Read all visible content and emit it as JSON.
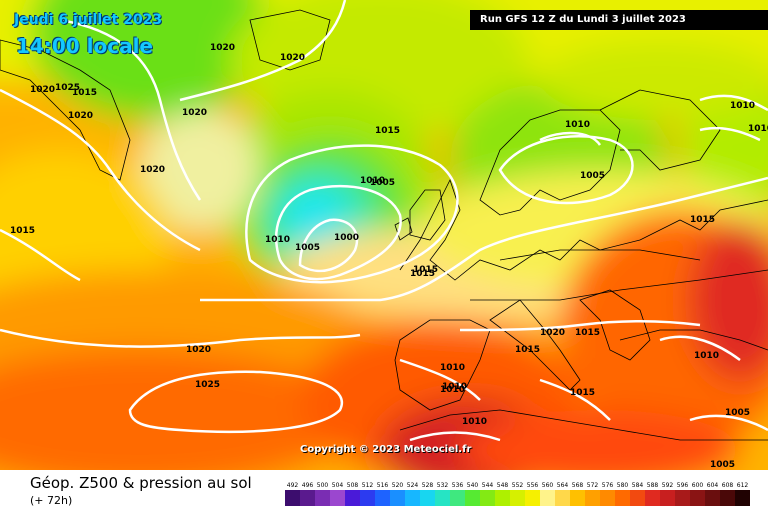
{
  "header": {
    "date": "Jeudi 6 juillet 2023",
    "time": "14:00 locale",
    "run": "Run GFS 12 Z du Lundi 3 juillet 2023"
  },
  "footer": {
    "copyright": "Copyright © 2023 Meteociel.fr",
    "title": "Géop. Z500 & pression au sol",
    "subtitle": "(+ 72h)"
  },
  "isobars": {
    "labels": [
      "1020",
      "1025",
      "1020",
      "1020",
      "1020",
      "1015",
      "1020",
      "1020",
      "1015",
      "1010",
      "1005",
      "1010",
      "1005",
      "1000",
      "1015",
      "1020",
      "1025",
      "1020",
      "1015",
      "1015",
      "1015",
      "1015",
      "1010",
      "1010",
      "1010",
      "1015",
      "1010",
      "1010",
      "1010",
      "1010",
      "1005",
      "1005",
      "1010",
      "1005",
      "1015"
    ]
  },
  "legend": {
    "unit_labels": [
      "492",
      "496",
      "500",
      "504",
      "508",
      "512",
      "516",
      "520",
      "524",
      "528",
      "532",
      "536",
      "540",
      "544",
      "548",
      "552",
      "556",
      "560",
      "564",
      "568",
      "572",
      "576",
      "580",
      "584",
      "588",
      "592",
      "596",
      "600",
      "604",
      "608",
      "612"
    ],
    "colors": [
      "#3c0d6e",
      "#5a1a8e",
      "#7a2db3",
      "#9b47cf",
      "#4a1ad8",
      "#2c3bf0",
      "#1e63ff",
      "#1a8fff",
      "#17b7ff",
      "#18d6f0",
      "#26e4c4",
      "#3fe87f",
      "#56ea32",
      "#83ea14",
      "#aef000",
      "#d6f000",
      "#f6f000",
      "#fff38a",
      "#ffd84a",
      "#ffc000",
      "#ffa000",
      "#ff8a00",
      "#ff6a00",
      "#f24a10",
      "#e02a20",
      "#c81f1f",
      "#a81a1a",
      "#8a1414",
      "#6a0e0e",
      "#4a0808",
      "#200202"
    ]
  }
}
